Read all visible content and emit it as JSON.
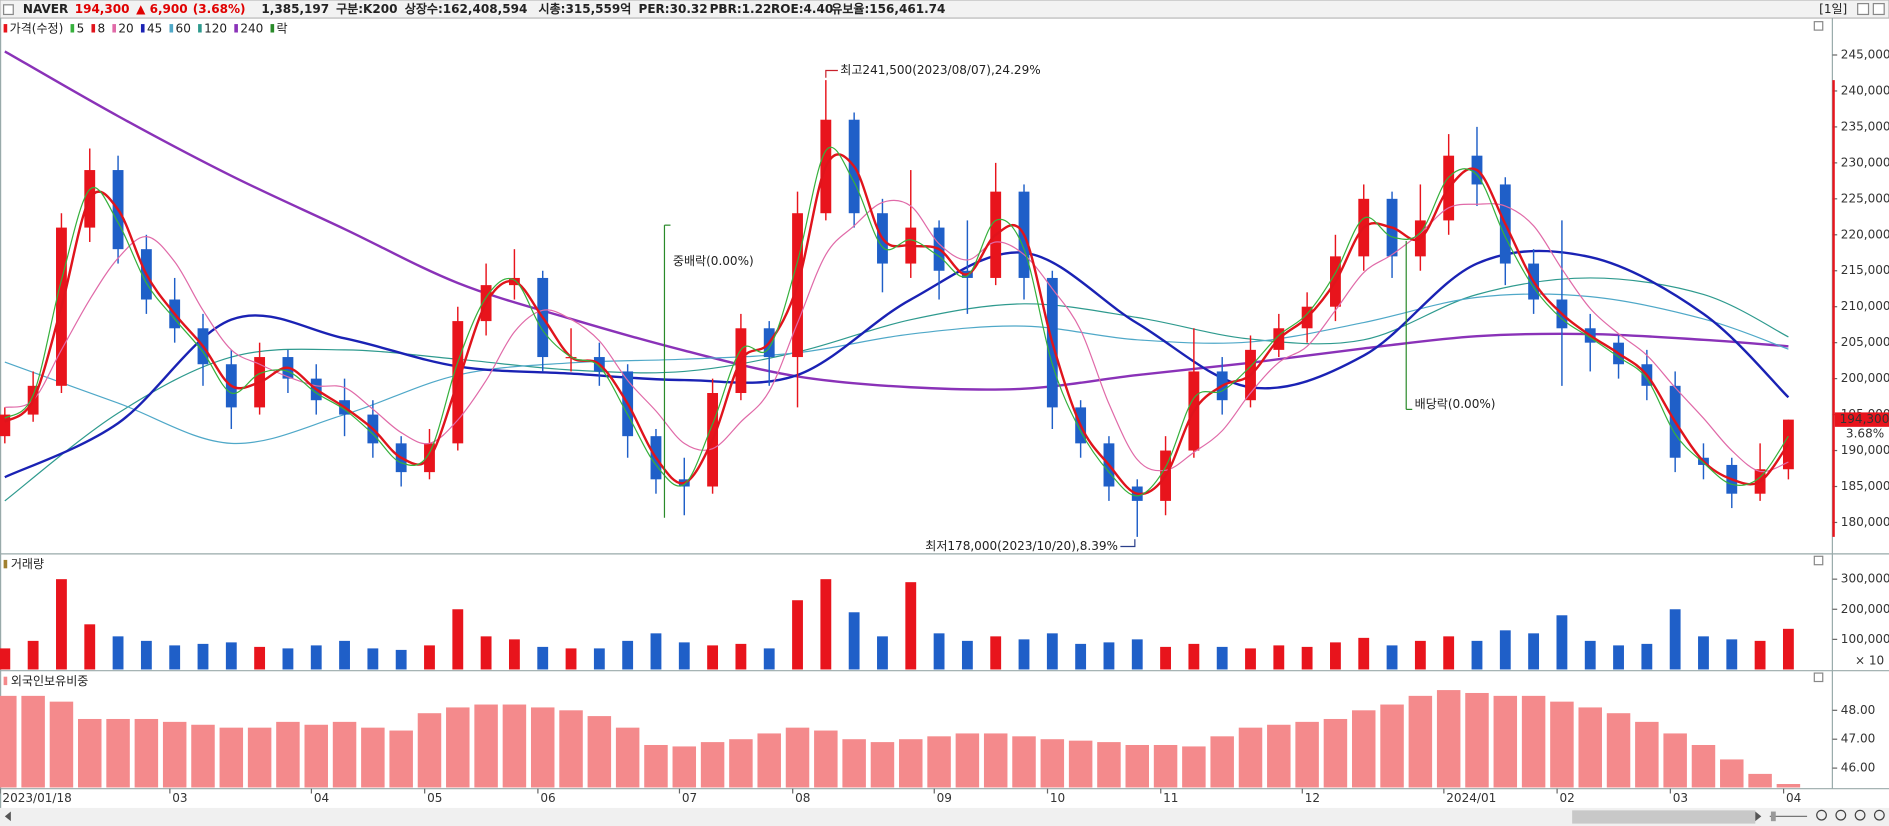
{
  "header": {
    "name": "NAVER",
    "price": "194,300",
    "change": "▲ 6,900",
    "change_pct": "(3.68%)",
    "volume": "1,385,197",
    "group": "구분:K200",
    "shares": "상장수:162,408,594",
    "market_cap": "시총:315,559억",
    "per": "PER:30.32",
    "pbr": "PBR:1.22",
    "roe": "ROE:4.40",
    "reserve": "유보율:156,461.74",
    "period": "[1일]"
  },
  "chart_data": [
    {
      "type": "candlestick",
      "name": "가격(수정)",
      "up_color": "#e8141c",
      "down_color": "#1f5fc8",
      "categories": [
        "2023/01/18",
        null,
        null,
        null,
        null,
        null,
        "03",
        null,
        null,
        null,
        null,
        "04",
        null,
        null,
        null,
        "05",
        null,
        null,
        null,
        "06",
        null,
        null,
        null,
        null,
        "07",
        null,
        null,
        null,
        "08",
        null,
        null,
        null,
        null,
        "09",
        null,
        null,
        null,
        "10",
        null,
        null,
        null,
        "11",
        null,
        null,
        null,
        null,
        "12",
        null,
        null,
        null,
        null,
        "2024/01",
        null,
        null,
        null,
        "02",
        null,
        null,
        null,
        "03",
        null,
        null,
        null,
        "04"
      ],
      "open": [
        192000,
        195000,
        199000,
        221000,
        229000,
        218000,
        211000,
        207000,
        202000,
        196000,
        203000,
        200000,
        197000,
        195000,
        191000,
        187000,
        191000,
        208000,
        213000,
        214000,
        203000,
        203000,
        201000,
        192000,
        186000,
        185000,
        198000,
        207000,
        203000,
        223000,
        236000,
        223000,
        216000,
        221000,
        215000,
        214000,
        226000,
        214000,
        196000,
        191000,
        185000,
        183000,
        190000,
        201000,
        197000,
        204000,
        207000,
        210000,
        217000,
        225000,
        217000,
        222000,
        231000,
        227000,
        216000,
        211000,
        207000,
        205000,
        202000,
        199000,
        189000,
        188000,
        184000,
        187400
      ],
      "high": [
        196000,
        201000,
        223000,
        232000,
        231000,
        220000,
        214000,
        209000,
        204000,
        205000,
        204000,
        202000,
        200000,
        197000,
        192000,
        193000,
        210000,
        216000,
        218000,
        215000,
        207000,
        205000,
        202000,
        193000,
        189000,
        200000,
        209000,
        208000,
        226000,
        241500,
        237000,
        225000,
        229000,
        222000,
        222000,
        230000,
        227000,
        215000,
        197000,
        192000,
        186000,
        192000,
        207000,
        203000,
        206000,
        209000,
        212000,
        220000,
        227000,
        226000,
        227000,
        234000,
        235000,
        228000,
        218000,
        222000,
        209000,
        206000,
        204000,
        201000,
        191000,
        189000,
        191000,
        194300
      ],
      "low": [
        191000,
        194000,
        198000,
        219000,
        216000,
        209000,
        205000,
        199000,
        193000,
        195000,
        198000,
        195000,
        192000,
        189000,
        185000,
        186000,
        190000,
        206000,
        211000,
        201000,
        201000,
        199000,
        189000,
        184000,
        181000,
        184000,
        197000,
        199000,
        196000,
        222000,
        221000,
        212000,
        214000,
        211000,
        209000,
        213000,
        211000,
        193000,
        189000,
        183000,
        178000,
        181000,
        189000,
        195000,
        196000,
        203000,
        205000,
        208000,
        215000,
        214000,
        215000,
        220000,
        224000,
        213000,
        209000,
        199000,
        201000,
        200000,
        197000,
        187000,
        186000,
        182000,
        183000,
        186000
      ],
      "close": [
        195000,
        199000,
        221000,
        229000,
        218000,
        211000,
        207000,
        202000,
        196000,
        203000,
        200000,
        197000,
        195000,
        191000,
        187000,
        191000,
        208000,
        213000,
        214000,
        203000,
        203000,
        201000,
        192000,
        186000,
        185000,
        198000,
        207000,
        203000,
        223000,
        236000,
        223000,
        216000,
        221000,
        215000,
        214000,
        226000,
        214000,
        196000,
        191000,
        185000,
        183000,
        190000,
        201000,
        197000,
        204000,
        207000,
        210000,
        217000,
        225000,
        217000,
        222000,
        231000,
        227000,
        216000,
        211000,
        207000,
        205000,
        202000,
        199000,
        189000,
        188000,
        184000,
        187400,
        194300
      ],
      "moving_averages": [
        {
          "name": "5",
          "color": "#36b03c",
          "width": 1,
          "values": [
            194500,
            197700,
            213700,
            226300,
            221700,
            213300,
            208300,
            203700,
            198000,
            200700,
            201000,
            198000,
            195700,
            192300,
            188300,
            189700,
            202300,
            211300,
            213700,
            206700,
            203000,
            201700,
            195000,
            188000,
            185300,
            193700,
            204000,
            204300,
            216300,
            231700,
            227300,
            218300,
            219300,
            217000,
            214300,
            222000,
            218000,
            202000,
            192700,
            187000,
            183700,
            187700,
            197300,
            198300,
            201700,
            206000,
            209000,
            214700,
            222300,
            219700,
            220300,
            228000,
            228300,
            219700,
            212700,
            208300,
            205700,
            203000,
            200000,
            192300,
            188300,
            185300,
            186300,
            192000
          ]
        },
        {
          "name": "8",
          "color": "#e0141c",
          "width": 2,
          "values": [
            194000,
            197000,
            210000,
            225000,
            223500,
            214500,
            209000,
            204500,
            199000,
            199500,
            201500,
            198500,
            196000,
            193000,
            189000,
            189000,
            199500,
            210500,
            213500,
            208500,
            203000,
            202000,
            196500,
            189000,
            185500,
            191500,
            202500,
            205000,
            213000,
            229500,
            229500,
            219500,
            218500,
            218000,
            214500,
            220000,
            220000,
            205000,
            193500,
            188000,
            184000,
            186500,
            195500,
            199000,
            200500,
            205500,
            208500,
            213500,
            221000,
            221000,
            219500,
            226500,
            229000,
            221500,
            213500,
            209000,
            206000,
            203500,
            200500,
            194000,
            188500,
            186000,
            185700,
            190900
          ]
        },
        {
          "name": "20",
          "color": "#e06aa8",
          "width": 1,
          "values": [
            196000,
            197000,
            204000,
            211000,
            216750,
            219750,
            216250,
            209500,
            204000,
            202000,
            200250,
            199000,
            198750,
            195750,
            192500,
            191000,
            194250,
            199750,
            206500,
            209500,
            208250,
            205250,
            199750,
            195500,
            191000,
            190250,
            194000,
            198250,
            207750,
            217250,
            221250,
            224500,
            224000,
            218750,
            216500,
            219000,
            217250,
            212500,
            206750,
            196500,
            188750,
            187250,
            189750,
            192750,
            198000,
            202250,
            204500,
            209500,
            214750,
            217250,
            220250,
            223750,
            224250,
            224000,
            221250,
            215250,
            209750,
            206250,
            203250,
            198750,
            194500,
            190000,
            187100,
            188400
          ]
        },
        {
          "name": "45",
          "color": "#1a22b4",
          "width": 2,
          "x": [
            0,
            4,
            8,
            12,
            16,
            20,
            24,
            28,
            32,
            36,
            40,
            44,
            48,
            52,
            56,
            60,
            63
          ],
          "values": [
            186300,
            193800,
            208200,
            205600,
            201700,
            200700,
            199800,
            200500,
            211000,
            217500,
            207700,
            198800,
            203200,
            216000,
            216900,
            209000,
            197400
          ]
        },
        {
          "name": "60",
          "color": "#4fa8c8",
          "width": 1,
          "x": [
            0,
            4,
            8,
            12,
            16,
            20,
            24,
            28,
            32,
            36,
            40,
            44,
            48,
            52,
            56,
            60,
            63
          ],
          "values": [
            202300,
            196600,
            191000,
            195000,
            200500,
            202200,
            202700,
            203600,
            206200,
            207300,
            205400,
            205100,
            207800,
            211300,
            211400,
            208300,
            204100
          ]
        },
        {
          "name": "120",
          "color": "#2e9a8e",
          "width": 1,
          "x": [
            0,
            4,
            8,
            12,
            16,
            20,
            24,
            28,
            32,
            36,
            40,
            44,
            48,
            52,
            56,
            60,
            63
          ],
          "values": [
            183000,
            195200,
            203000,
            204000,
            202700,
            201200,
            201000,
            203700,
            208200,
            210400,
            208500,
            205500,
            205400,
            211700,
            214000,
            211700,
            205800
          ]
        },
        {
          "name": "240",
          "color": "#8a32b8",
          "width": 2,
          "x": [
            0,
            4,
            8,
            12,
            16,
            20,
            24,
            28,
            32,
            36,
            40,
            44,
            48,
            52,
            56,
            60,
            63
          ],
          "values": [
            245500,
            236500,
            228200,
            220800,
            213300,
            208300,
            203900,
            200300,
            198800,
            198600,
            200500,
            202200,
            204200,
            205900,
            206200,
            205400,
            204500
          ]
        }
      ],
      "event_legend": "락",
      "event_color": "#2a8a2a",
      "events": [
        {
          "x": 23.3,
          "label": "중배락(0.00%)"
        },
        {
          "x": 49.5,
          "label": "배당락(0.00%)"
        }
      ],
      "high_annotation": "최고241,500(2023/08/07),24.29%",
      "low_annotation": "최저178,000(2023/10/20),8.39%",
      "last_label": "194,300",
      "last_change": "3.68%",
      "ylim": [
        175800,
        249800
      ],
      "yticks": [
        {
          "value": 180000,
          "label": "180,000"
        },
        {
          "value": 185000,
          "label": "185,000"
        },
        {
          "value": 190000,
          "label": "190,000"
        },
        {
          "value": 195000,
          "label": "195,000"
        },
        {
          "value": 200000,
          "label": "200,000"
        },
        {
          "value": 205000,
          "label": "205,000"
        },
        {
          "value": 210000,
          "label": "210,000"
        },
        {
          "value": 215000,
          "label": "215,000"
        },
        {
          "value": 220000,
          "label": "220,000"
        },
        {
          "value": 225000,
          "label": "225,000"
        },
        {
          "value": 230000,
          "label": "230,000"
        },
        {
          "value": 235000,
          "label": "235,000"
        },
        {
          "value": 240000,
          "label": "240,000"
        },
        {
          "value": 245000,
          "label": "245,000"
        }
      ]
    },
    {
      "type": "bar",
      "title": "거래량",
      "color_from_candles": true,
      "unit_label": "× 10",
      "values": [
        70000,
        95000,
        300000,
        150000,
        110000,
        95000,
        80000,
        85000,
        90000,
        75000,
        70000,
        80000,
        95000,
        70000,
        65000,
        80000,
        200000,
        110000,
        100000,
        75000,
        70000,
        70000,
        95000,
        120000,
        90000,
        80000,
        85000,
        70000,
        230000,
        300000,
        190000,
        110000,
        290000,
        120000,
        95000,
        110000,
        100000,
        120000,
        85000,
        90000,
        100000,
        75000,
        85000,
        75000,
        70000,
        80000,
        75000,
        90000,
        105000,
        80000,
        95000,
        110000,
        95000,
        130000,
        120000,
        180000,
        95000,
        80000,
        85000,
        200000,
        110000,
        100000,
        95000,
        135000
      ],
      "ylim": [
        0,
        380000
      ],
      "yticks": [
        {
          "value": 100000,
          "label": "100,000"
        },
        {
          "value": 200000,
          "label": "200,000"
        },
        {
          "value": 300000,
          "label": "300,000"
        }
      ]
    },
    {
      "type": "bar",
      "title": "외국인보유비중",
      "color": "#f48a8c",
      "values": [
        48.5,
        48.5,
        48.3,
        47.7,
        47.7,
        47.7,
        47.6,
        47.5,
        47.4,
        47.4,
        47.6,
        47.5,
        47.6,
        47.4,
        47.3,
        47.9,
        48.1,
        48.2,
        48.2,
        48.1,
        48.0,
        47.8,
        47.4,
        46.8,
        46.75,
        46.9,
        47.0,
        47.2,
        47.4,
        47.3,
        47.0,
        46.9,
        47.0,
        47.1,
        47.2,
        47.2,
        47.1,
        47.0,
        46.95,
        46.9,
        46.8,
        46.8,
        46.75,
        47.1,
        47.4,
        47.5,
        47.6,
        47.7,
        48.0,
        48.2,
        48.5,
        48.7,
        48.6,
        48.5,
        48.5,
        48.3,
        48.1,
        47.9,
        47.6,
        47.2,
        46.8,
        46.3,
        45.8,
        45.45
      ],
      "ylim": [
        45.33,
        49.33
      ],
      "yticks": [
        {
          "value": 46,
          "label": "46.00"
        },
        {
          "value": 47,
          "label": "47.00"
        },
        {
          "value": 48,
          "label": "48.00"
        }
      ]
    }
  ]
}
